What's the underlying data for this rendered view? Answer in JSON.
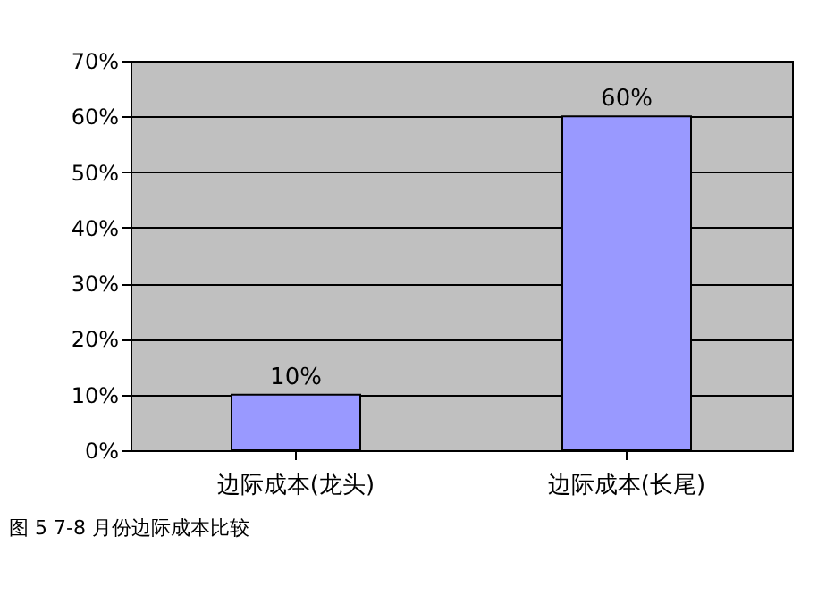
{
  "chart_data": {
    "type": "bar",
    "categories": [
      "边际成本(龙头)",
      "边际成本(长尾)"
    ],
    "values": [
      10,
      60
    ],
    "color": "#9999ff",
    "data_labels": true,
    "value_labels": [
      "10%",
      "60%"
    ],
    "ylim": [
      0,
      70
    ],
    "yticks": [
      {
        "value": 0,
        "label": "0%"
      },
      {
        "value": 10,
        "label": "10%"
      },
      {
        "value": 20,
        "label": "20%"
      },
      {
        "value": 30,
        "label": "30%"
      },
      {
        "value": 40,
        "label": "40%"
      },
      {
        "value": 50,
        "label": "50%"
      },
      {
        "value": 60,
        "label": "60%"
      },
      {
        "value": 70,
        "label": "70%"
      }
    ],
    "grid": "y",
    "annotations": [
      "图 5 7-8 月份边际成本比较"
    ]
  }
}
